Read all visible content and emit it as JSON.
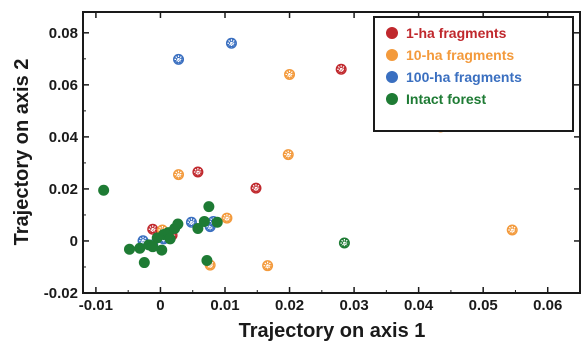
{
  "chart_data": {
    "type": "scatter",
    "xlabel": "Trajectory on axis 1",
    "ylabel": "Trajectory on axis 2",
    "xlim": [
      -0.012,
      0.065
    ],
    "ylim": [
      -0.02,
      0.088
    ],
    "x_ticks": [
      "-0.01",
      "0",
      "0.01",
      "0.02",
      "0.03",
      "0.04",
      "0.05",
      "0.06"
    ],
    "x_tick_values": [
      -0.01,
      0,
      0.01,
      0.02,
      0.03,
      0.04,
      0.05,
      0.06
    ],
    "y_ticks": [
      "-0.02",
      "0",
      "0.02",
      "0.04",
      "0.06",
      "0.08"
    ],
    "y_tick_values": [
      -0.02,
      0,
      0.02,
      0.04,
      0.06,
      0.08
    ],
    "legend_position": "top-right",
    "series": [
      {
        "name": "1-ha fragments",
        "color": "#c0282d",
        "points": [
          [
            0.028,
            0.066
          ],
          [
            0.0148,
            0.0203
          ],
          [
            0.0058,
            0.0265
          ],
          [
            -0.0012,
            0.0045
          ],
          [
            0.0018,
            0.0022
          ]
        ]
      },
      {
        "name": "10-ha fragments",
        "color": "#f39a3c",
        "points": [
          [
            0.02,
            0.064
          ],
          [
            0.0434,
            0.0438
          ],
          [
            0.0198,
            0.0332
          ],
          [
            0.0028,
            0.0255
          ],
          [
            0.0545,
            0.0042
          ],
          [
            0.0103,
            0.0088
          ],
          [
            0.0077,
            -0.0093
          ],
          [
            0.0166,
            -0.0095
          ],
          [
            0.0003,
            0.0042
          ]
        ]
      },
      {
        "name": "100-ha fragments",
        "color": "#3a6fc0",
        "points": [
          [
            0.011,
            0.076
          ],
          [
            0.0028,
            0.0698
          ],
          [
            0.0048,
            0.0072
          ],
          [
            0.0077,
            0.0055
          ],
          [
            0.0082,
            0.0075
          ],
          [
            -0.0027,
            0.0001
          ],
          [
            -0.0012,
            -0.0015
          ],
          [
            0.0005,
            0.0008
          ]
        ]
      },
      {
        "name": "Intact forest",
        "color": "#1e7b34",
        "points": [
          [
            -0.0088,
            0.0195
          ],
          [
            -0.0048,
            -0.0032
          ],
          [
            -0.0032,
            -0.0028
          ],
          [
            -0.0025,
            -0.0083
          ],
          [
            -0.0018,
            -0.0015
          ],
          [
            -0.0005,
            0.0012
          ],
          [
            0.0005,
            0.0025
          ],
          [
            0.0012,
            0.0032
          ],
          [
            0.0022,
            0.0048
          ],
          [
            0.0027,
            0.0065
          ],
          [
            0.0058,
            0.0048
          ],
          [
            0.0068,
            0.0075
          ],
          [
            0.0075,
            0.0132
          ],
          [
            0.0088,
            0.0072
          ],
          [
            0.0002,
            -0.0035
          ],
          [
            -0.0012,
            -0.0022
          ],
          [
            0.0015,
            0.0008
          ],
          [
            0.0072,
            -0.0075
          ],
          [
            0.0285,
            -0.0008
          ]
        ]
      }
    ]
  }
}
